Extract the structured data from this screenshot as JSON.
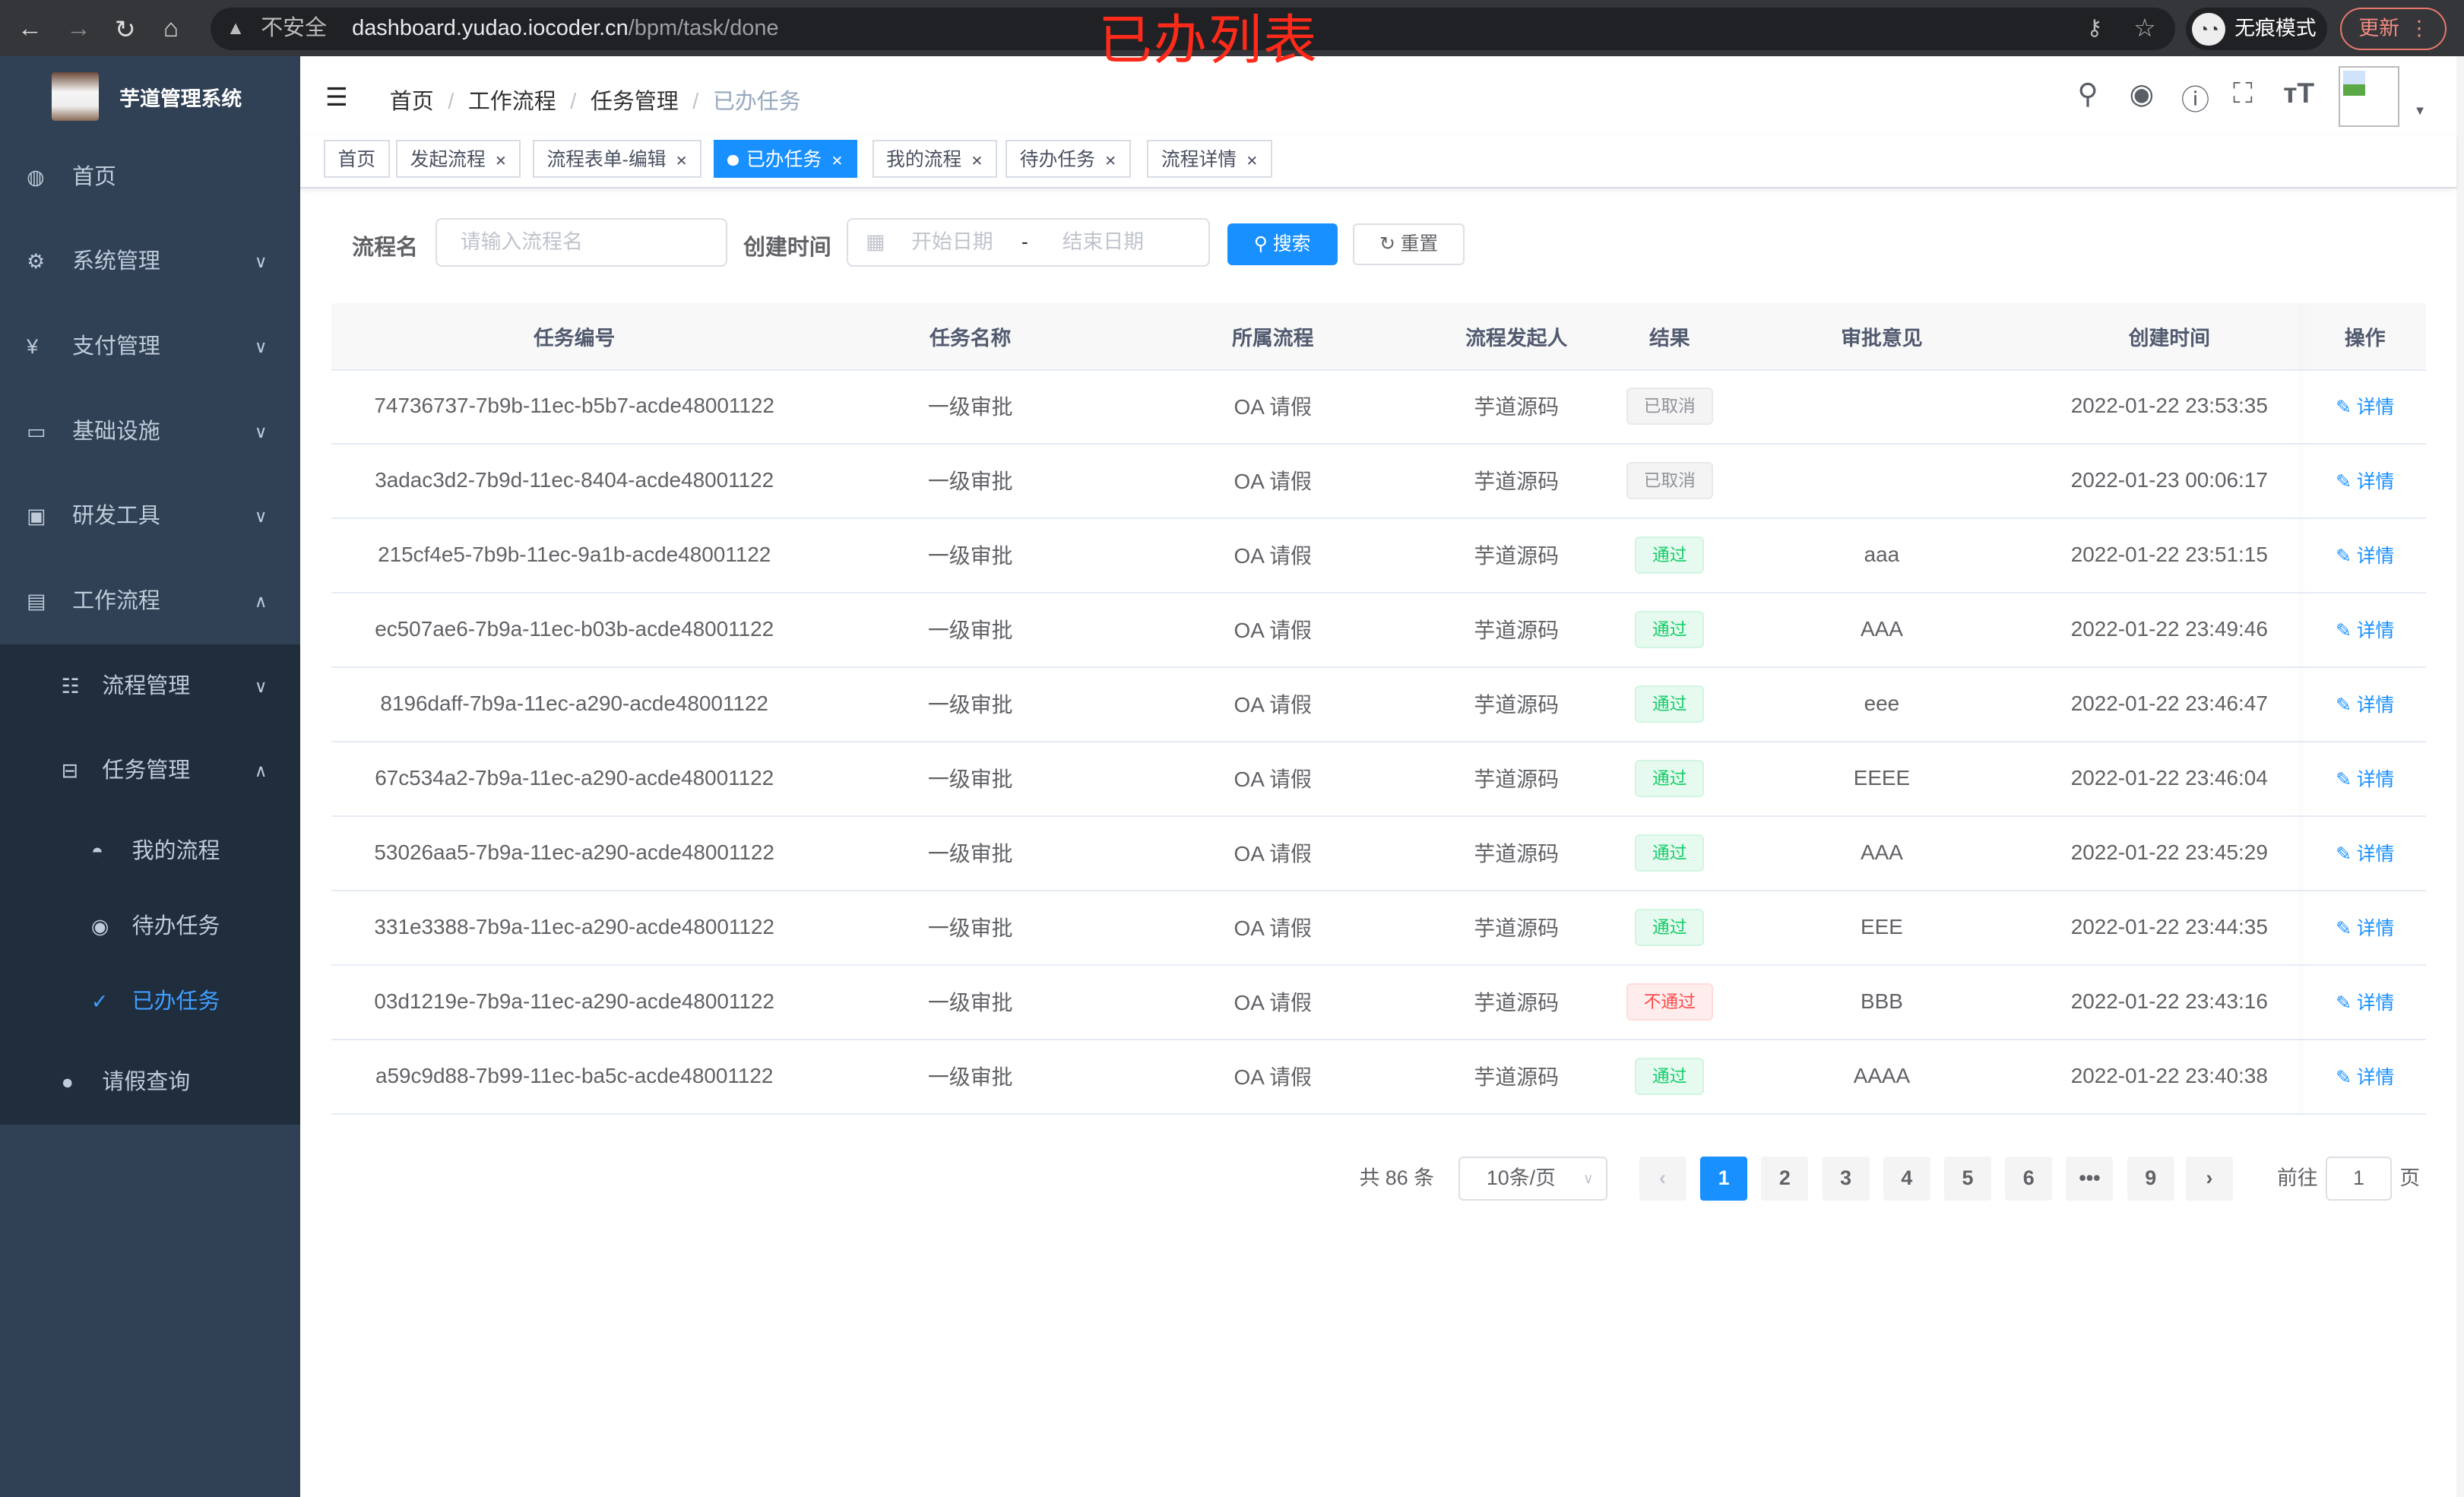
{
  "browser": {
    "insecure_label": "不安全",
    "url_host": "dashboard.yudao.iocoder.cn",
    "url_path": "/bpm/task/done",
    "incognito_label": "无痕模式",
    "update_label": "更新"
  },
  "annotation": "已办列表",
  "sidebar": {
    "title": "芋道管理系统",
    "items": [
      {
        "label": "首页",
        "icon": "dashboard-icon"
      },
      {
        "label": "系统管理",
        "icon": "gear-icon"
      },
      {
        "label": "支付管理",
        "icon": "yen-icon"
      },
      {
        "label": "基础设施",
        "icon": "monitor-icon"
      },
      {
        "label": "研发工具",
        "icon": "toolbox-icon"
      },
      {
        "label": "工作流程",
        "icon": "briefcase-icon"
      },
      {
        "label": "流程管理",
        "icon": "list-icon"
      },
      {
        "label": "任务管理",
        "icon": "tree-icon"
      },
      {
        "label": "我的流程",
        "icon": "person-icon"
      },
      {
        "label": "待办任务",
        "icon": "eye-icon"
      },
      {
        "label": "已办任务",
        "icon": "check-icon"
      },
      {
        "label": "请假查询",
        "icon": "user-icon"
      }
    ]
  },
  "breadcrumb": [
    "首页",
    "工作流程",
    "任务管理",
    "已办任务"
  ],
  "tags": [
    "首页",
    "发起流程",
    "流程表单-编辑",
    "已办任务",
    "我的流程",
    "待办任务",
    "流程详情"
  ],
  "search": {
    "name_label": "流程名",
    "name_placeholder": "请输入流程名",
    "time_label": "创建时间",
    "start_placeholder": "开始日期",
    "range_sep": "-",
    "end_placeholder": "结束日期",
    "search_label": "搜索",
    "reset_label": "重置"
  },
  "table": {
    "columns": [
      "任务编号",
      "任务名称",
      "所属流程",
      "流程发起人",
      "结果",
      "审批意见",
      "创建时间",
      "操作"
    ],
    "action_label": "详情",
    "rows": [
      {
        "id": "74736737-7b9b-11ec-b5b7-acde48001122",
        "name": "一级审批",
        "process": "OA 请假",
        "starter": "芋道源码",
        "result": "已取消",
        "status": "info",
        "comment": "",
        "time": "2022-01-22 23:53:35"
      },
      {
        "id": "3adac3d2-7b9d-11ec-8404-acde48001122",
        "name": "一级审批",
        "process": "OA 请假",
        "starter": "芋道源码",
        "result": "已取消",
        "status": "info",
        "comment": "",
        "time": "2022-01-23 00:06:17"
      },
      {
        "id": "215cf4e5-7b9b-11ec-9a1b-acde48001122",
        "name": "一级审批",
        "process": "OA 请假",
        "starter": "芋道源码",
        "result": "通过",
        "status": "success",
        "comment": "aaa",
        "time": "2022-01-22 23:51:15"
      },
      {
        "id": "ec507ae6-7b9a-11ec-b03b-acde48001122",
        "name": "一级审批",
        "process": "OA 请假",
        "starter": "芋道源码",
        "result": "通过",
        "status": "success",
        "comment": "AAA",
        "time": "2022-01-22 23:49:46"
      },
      {
        "id": "8196daff-7b9a-11ec-a290-acde48001122",
        "name": "一级审批",
        "process": "OA 请假",
        "starter": "芋道源码",
        "result": "通过",
        "status": "success",
        "comment": "eee",
        "time": "2022-01-22 23:46:47"
      },
      {
        "id": "67c534a2-7b9a-11ec-a290-acde48001122",
        "name": "一级审批",
        "process": "OA 请假",
        "starter": "芋道源码",
        "result": "通过",
        "status": "success",
        "comment": "EEEE",
        "time": "2022-01-22 23:46:04"
      },
      {
        "id": "53026aa5-7b9a-11ec-a290-acde48001122",
        "name": "一级审批",
        "process": "OA 请假",
        "starter": "芋道源码",
        "result": "通过",
        "status": "success",
        "comment": "AAA",
        "time": "2022-01-22 23:45:29"
      },
      {
        "id": "331e3388-7b9a-11ec-a290-acde48001122",
        "name": "一级审批",
        "process": "OA 请假",
        "starter": "芋道源码",
        "result": "通过",
        "status": "success",
        "comment": "EEE",
        "time": "2022-01-22 23:44:35"
      },
      {
        "id": "03d1219e-7b9a-11ec-a290-acde48001122",
        "name": "一级审批",
        "process": "OA 请假",
        "starter": "芋道源码",
        "result": "不通过",
        "status": "danger",
        "comment": "BBB",
        "time": "2022-01-22 23:43:16"
      },
      {
        "id": "a59c9d88-7b99-11ec-ba5c-acde48001122",
        "name": "一级审批",
        "process": "OA 请假",
        "starter": "芋道源码",
        "result": "通过",
        "status": "success",
        "comment": "AAAA",
        "time": "2022-01-22 23:40:38"
      }
    ]
  },
  "pagination": {
    "total_label": "共 86 条",
    "page_size": "10条/页",
    "pages": [
      "1",
      "2",
      "3",
      "4",
      "5",
      "6",
      "•••",
      "9"
    ],
    "current": "1",
    "goto_label": "前往",
    "goto_value": "1",
    "page_suffix": "页"
  },
  "colors": {
    "primary": "#1890ff",
    "sidebar_bg": "#304156",
    "submenu_bg": "#1f2d3d",
    "annotation": "#ff2a1a"
  }
}
